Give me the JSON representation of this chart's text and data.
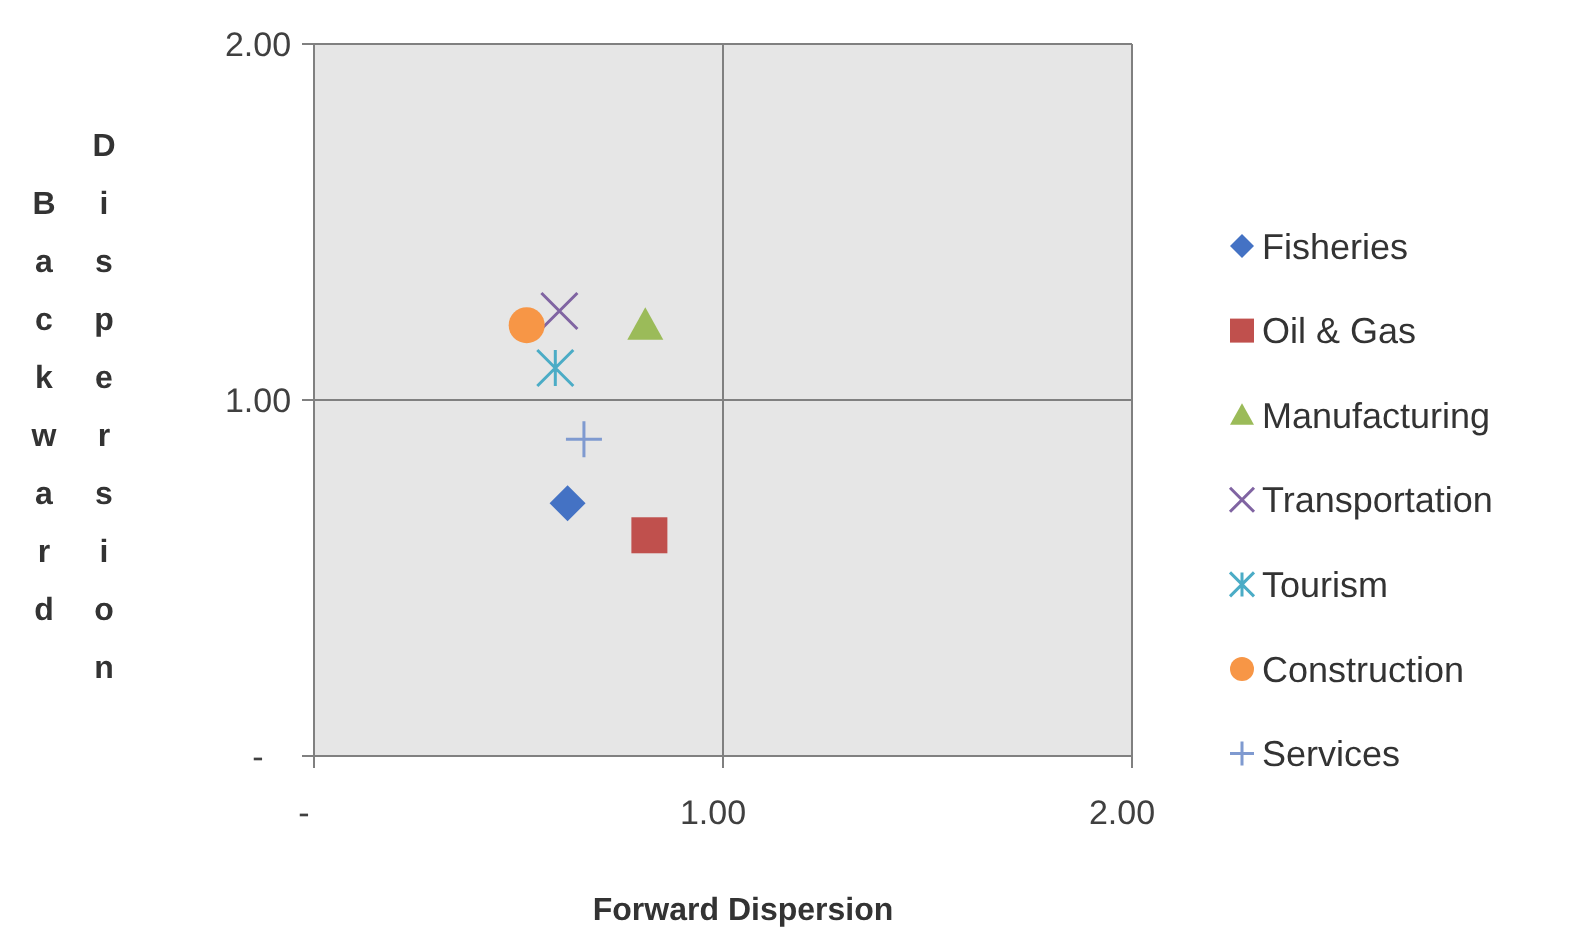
{
  "chart_data": {
    "type": "scatter",
    "xlabel": "Forward Dispersion",
    "ylabel": "Backward Dispersion",
    "xlim": [
      0,
      2
    ],
    "ylim": [
      0,
      2
    ],
    "xticks": [
      {
        "value": 0,
        "label": "-"
      },
      {
        "value": 1,
        "label": "1.00"
      },
      {
        "value": 2,
        "label": "2.00"
      }
    ],
    "yticks": [
      {
        "value": 0,
        "label": "-"
      },
      {
        "value": 1,
        "label": "1.00"
      },
      {
        "value": 2,
        "label": "2.00"
      }
    ],
    "grid": true,
    "legend": "right",
    "series": [
      {
        "name": "Fisheries",
        "color": "#4472c4",
        "marker": "diamond",
        "x": [
          0.62
        ],
        "values": [
          0.71
        ]
      },
      {
        "name": "Oil & Gas",
        "color": "#c0504d",
        "marker": "square",
        "x": [
          0.82
        ],
        "values": [
          0.62
        ]
      },
      {
        "name": "Manufacturing",
        "color": "#9bbb59",
        "marker": "triangle",
        "x": [
          0.81
        ],
        "values": [
          1.21
        ]
      },
      {
        "name": "Transportation",
        "color": "#8064a2",
        "marker": "x",
        "x": [
          0.6
        ],
        "values": [
          1.25
        ]
      },
      {
        "name": "Tourism",
        "color": "#4bacc6",
        "x": [
          0.59
        ],
        "values": [
          1.09
        ]
      },
      {
        "name": "Construction",
        "color": "#f79646",
        "marker": "circle",
        "x": [
          0.52
        ],
        "values": [
          1.21
        ]
      },
      {
        "name": "Services",
        "color": "#7f9ad0",
        "marker": "cross",
        "x": [
          0.66
        ],
        "values": [
          0.89
        ]
      }
    ]
  }
}
